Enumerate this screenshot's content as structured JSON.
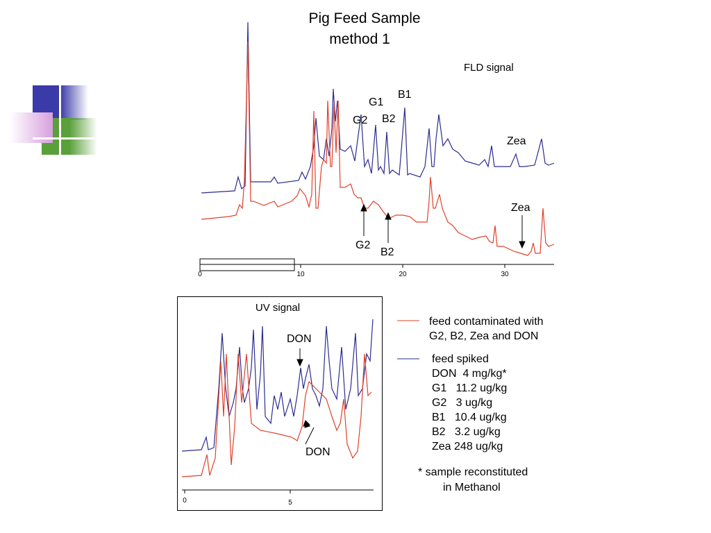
{
  "title": [
    "Pig Feed Sample",
    "method 1"
  ],
  "fld": {
    "label": "FLD signal",
    "peaks": [
      "G2",
      "G1",
      "B2",
      "B1",
      "Zea"
    ],
    "arrows": [
      "G2",
      "B2",
      "Zea"
    ],
    "ticks": [
      "0",
      "10",
      "20",
      "30"
    ]
  },
  "uv": {
    "label": "UV signal",
    "peaks": [
      "DON",
      "DON"
    ],
    "ticks": [
      "0",
      "5"
    ]
  },
  "legend": [
    {
      "lines": [
        "feed contaminated with",
        "G2, B2, Zea and DON"
      ]
    },
    {
      "lines": [
        "feed spiked",
        "DON  4 mg/kg*",
        "G1   11.2 ug/kg",
        "G2   3 ug/kg",
        "B1   10.4 ug/kg",
        "B2   3.2 ug/kg",
        "Zea 248 ug/kg"
      ]
    }
  ],
  "note": [
    "* sample reconstituted",
    "in Methanol"
  ]
}
